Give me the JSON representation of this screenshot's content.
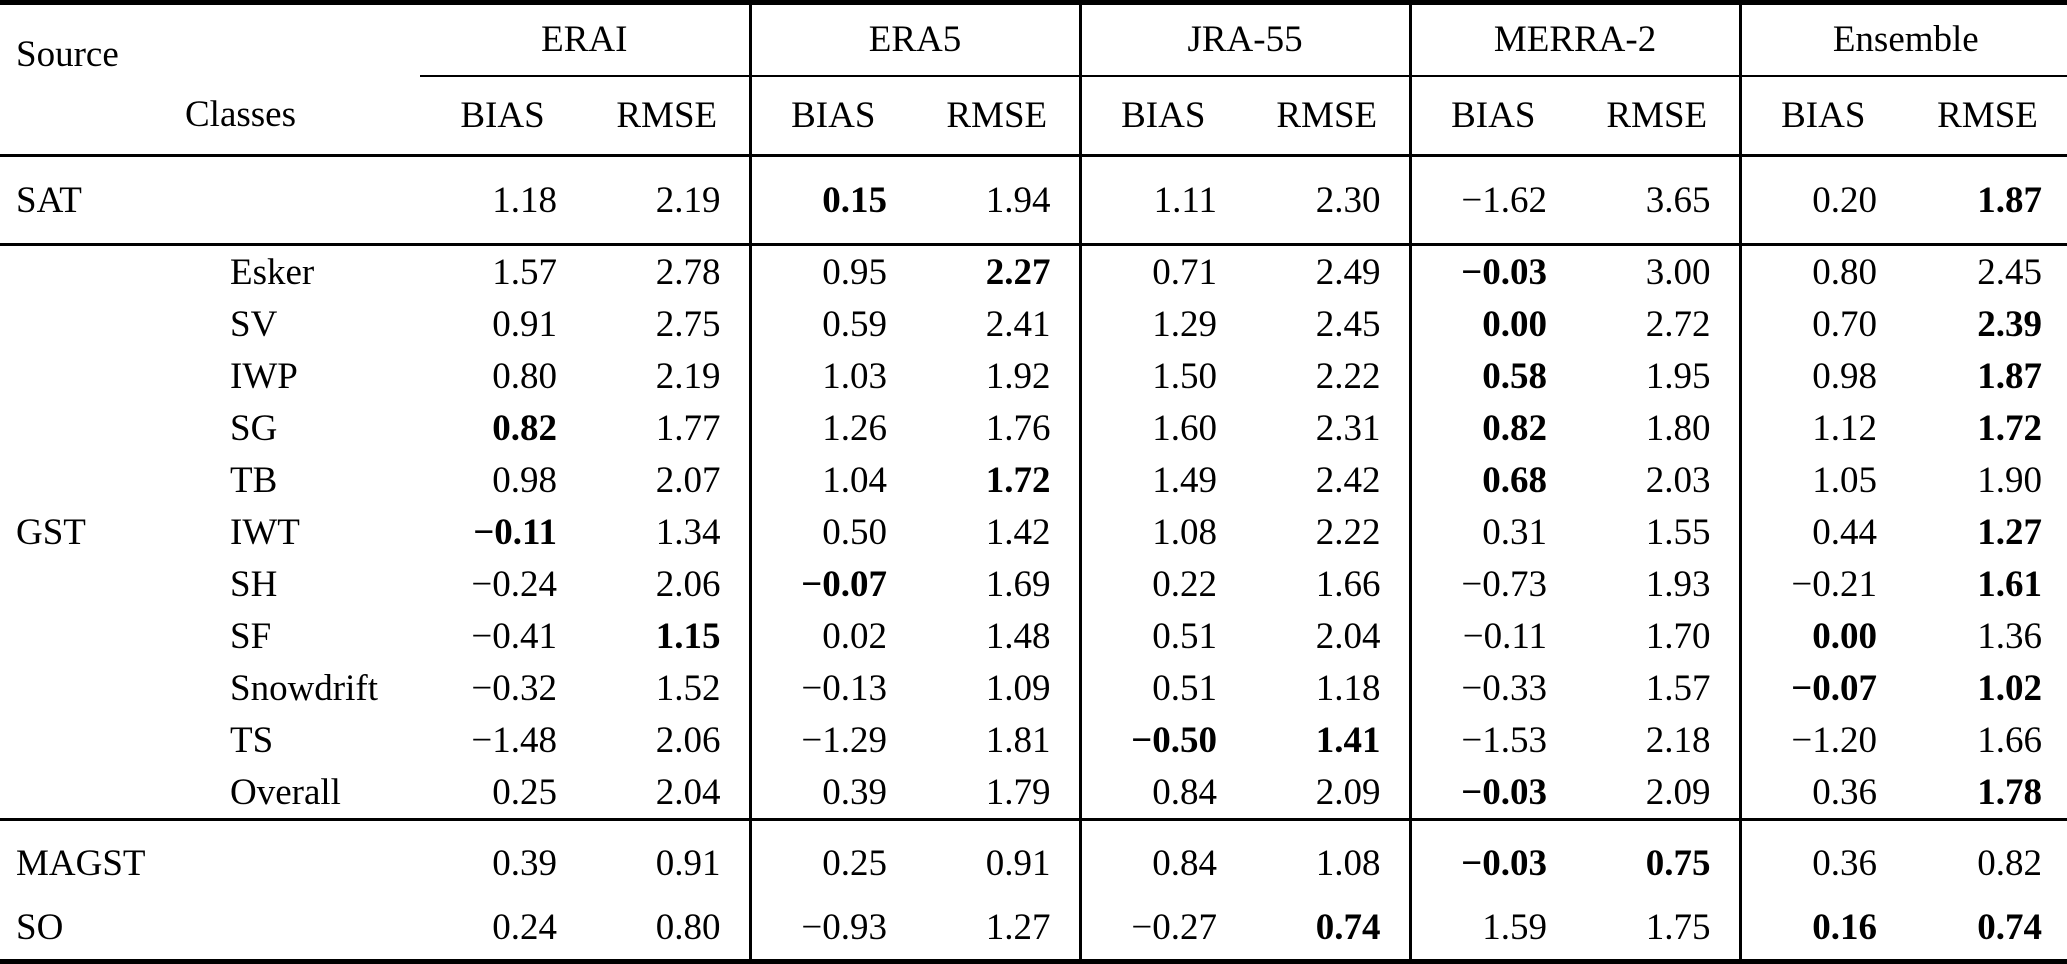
{
  "table": {
    "corner": {
      "source_label": "Source",
      "classes_label": "Classes"
    },
    "groups": [
      {
        "name": "ERAI"
      },
      {
        "name": "ERA5"
      },
      {
        "name": "JRA-55"
      },
      {
        "name": "MERRA-2"
      },
      {
        "name": "Ensemble"
      }
    ],
    "subcols": [
      "BIAS",
      "RMSE"
    ],
    "colors": {
      "line": "#000000",
      "background": "#ffffff",
      "text": "#000000"
    },
    "sections": [
      {
        "rows": [
          {
            "source": "SAT",
            "class": "",
            "values": [
              [
                "1.18",
                0
              ],
              [
                "2.19",
                0
              ],
              [
                "0.15",
                1
              ],
              [
                "1.94",
                0
              ],
              [
                "1.11",
                0
              ],
              [
                "2.30",
                0
              ],
              [
                "−1.62",
                0
              ],
              [
                "3.65",
                0
              ],
              [
                "0.20",
                0
              ],
              [
                "1.87",
                1
              ]
            ]
          }
        ]
      },
      {
        "rows": [
          {
            "source": "GST",
            "class": "Esker",
            "values": [
              [
                "1.57",
                0
              ],
              [
                "2.78",
                0
              ],
              [
                "0.95",
                0
              ],
              [
                "2.27",
                1
              ],
              [
                "0.71",
                0
              ],
              [
                "2.49",
                0
              ],
              [
                "−0.03",
                1
              ],
              [
                "3.00",
                0
              ],
              [
                "0.80",
                0
              ],
              [
                "2.45",
                0
              ]
            ]
          },
          {
            "source": null,
            "class": "SV",
            "values": [
              [
                "0.91",
                0
              ],
              [
                "2.75",
                0
              ],
              [
                "0.59",
                0
              ],
              [
                "2.41",
                0
              ],
              [
                "1.29",
                0
              ],
              [
                "2.45",
                0
              ],
              [
                "0.00",
                1
              ],
              [
                "2.72",
                0
              ],
              [
                "0.70",
                0
              ],
              [
                "2.39",
                1
              ]
            ]
          },
          {
            "source": null,
            "class": "IWP",
            "values": [
              [
                "0.80",
                0
              ],
              [
                "2.19",
                0
              ],
              [
                "1.03",
                0
              ],
              [
                "1.92",
                0
              ],
              [
                "1.50",
                0
              ],
              [
                "2.22",
                0
              ],
              [
                "0.58",
                1
              ],
              [
                "1.95",
                0
              ],
              [
                "0.98",
                0
              ],
              [
                "1.87",
                1
              ]
            ]
          },
          {
            "source": null,
            "class": "SG",
            "values": [
              [
                "0.82",
                1
              ],
              [
                "1.77",
                0
              ],
              [
                "1.26",
                0
              ],
              [
                "1.76",
                0
              ],
              [
                "1.60",
                0
              ],
              [
                "2.31",
                0
              ],
              [
                "0.82",
                1
              ],
              [
                "1.80",
                0
              ],
              [
                "1.12",
                0
              ],
              [
                "1.72",
                1
              ]
            ]
          },
          {
            "source": null,
            "class": "TB",
            "values": [
              [
                "0.98",
                0
              ],
              [
                "2.07",
                0
              ],
              [
                "1.04",
                0
              ],
              [
                "1.72",
                1
              ],
              [
                "1.49",
                0
              ],
              [
                "2.42",
                0
              ],
              [
                "0.68",
                1
              ],
              [
                "2.03",
                0
              ],
              [
                "1.05",
                0
              ],
              [
                "1.90",
                0
              ]
            ]
          },
          {
            "source": null,
            "class": "IWT",
            "values": [
              [
                "−0.11",
                1
              ],
              [
                "1.34",
                0
              ],
              [
                "0.50",
                0
              ],
              [
                "1.42",
                0
              ],
              [
                "1.08",
                0
              ],
              [
                "2.22",
                0
              ],
              [
                "0.31",
                0
              ],
              [
                "1.55",
                0
              ],
              [
                "0.44",
                0
              ],
              [
                "1.27",
                1
              ]
            ]
          },
          {
            "source": null,
            "class": "SH",
            "values": [
              [
                "−0.24",
                0
              ],
              [
                "2.06",
                0
              ],
              [
                "−0.07",
                1
              ],
              [
                "1.69",
                0
              ],
              [
                "0.22",
                0
              ],
              [
                "1.66",
                0
              ],
              [
                "−0.73",
                0
              ],
              [
                "1.93",
                0
              ],
              [
                "−0.21",
                0
              ],
              [
                "1.61",
                1
              ]
            ]
          },
          {
            "source": null,
            "class": "SF",
            "values": [
              [
                "−0.41",
                0
              ],
              [
                "1.15",
                1
              ],
              [
                "0.02",
                0
              ],
              [
                "1.48",
                0
              ],
              [
                "0.51",
                0
              ],
              [
                "2.04",
                0
              ],
              [
                "−0.11",
                0
              ],
              [
                "1.70",
                0
              ],
              [
                "0.00",
                1
              ],
              [
                "1.36",
                0
              ]
            ]
          },
          {
            "source": null,
            "class": "Snowdrift",
            "values": [
              [
                "−0.32",
                0
              ],
              [
                "1.52",
                0
              ],
              [
                "−0.13",
                0
              ],
              [
                "1.09",
                0
              ],
              [
                "0.51",
                0
              ],
              [
                "1.18",
                0
              ],
              [
                "−0.33",
                0
              ],
              [
                "1.57",
                0
              ],
              [
                "−0.07",
                1
              ],
              [
                "1.02",
                1
              ]
            ]
          },
          {
            "source": null,
            "class": "TS",
            "values": [
              [
                "−1.48",
                0
              ],
              [
                "2.06",
                0
              ],
              [
                "−1.29",
                0
              ],
              [
                "1.81",
                0
              ],
              [
                "−0.50",
                1
              ],
              [
                "1.41",
                1
              ],
              [
                "−1.53",
                0
              ],
              [
                "2.18",
                0
              ],
              [
                "−1.20",
                0
              ],
              [
                "1.66",
                0
              ]
            ]
          },
          {
            "source": null,
            "class": "Overall",
            "values": [
              [
                "0.25",
                0
              ],
              [
                "2.04",
                0
              ],
              [
                "0.39",
                0
              ],
              [
                "1.79",
                0
              ],
              [
                "0.84",
                0
              ],
              [
                "2.09",
                0
              ],
              [
                "−0.03",
                1
              ],
              [
                "2.09",
                0
              ],
              [
                "0.36",
                0
              ],
              [
                "1.78",
                1
              ]
            ]
          }
        ]
      },
      {
        "rows": [
          {
            "source": "MAGST",
            "class": "",
            "values": [
              [
                "0.39",
                0
              ],
              [
                "0.91",
                0
              ],
              [
                "0.25",
                0
              ],
              [
                "0.91",
                0
              ],
              [
                "0.84",
                0
              ],
              [
                "1.08",
                0
              ],
              [
                "−0.03",
                1
              ],
              [
                "0.75",
                1
              ],
              [
                "0.36",
                0
              ],
              [
                "0.82",
                0
              ]
            ]
          },
          {
            "source": "SO",
            "class": "",
            "values": [
              [
                "0.24",
                0
              ],
              [
                "0.80",
                0
              ],
              [
                "−0.93",
                0
              ],
              [
                "1.27",
                0
              ],
              [
                "−0.27",
                0
              ],
              [
                "0.74",
                1
              ],
              [
                "1.59",
                0
              ],
              [
                "1.75",
                0
              ],
              [
                "0.16",
                1
              ],
              [
                "0.74",
                1
              ]
            ]
          }
        ]
      }
    ]
  }
}
